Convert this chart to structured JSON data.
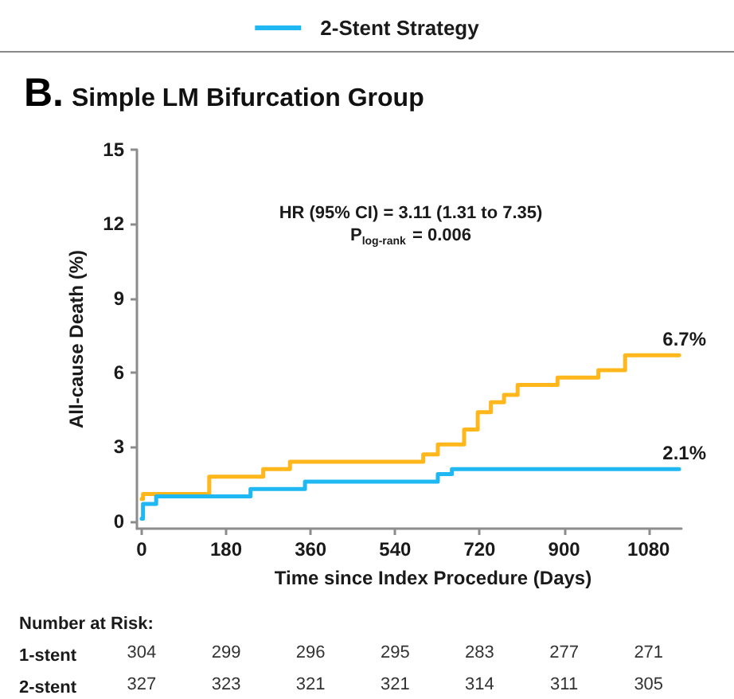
{
  "chart_data": {
    "type": "step",
    "title": "B. Simple LM Bifurcation Group",
    "xlabel": "Time since Index Procedure (Days)",
    "ylabel": "All-cause Death (%)",
    "xlim": [
      -10,
      1150
    ],
    "xticks": [
      0,
      180,
      360,
      540,
      720,
      900,
      1080
    ],
    "ylim": [
      -0.3,
      15
    ],
    "yticks": [
      0,
      3,
      6,
      9,
      12,
      15
    ],
    "series": [
      {
        "color": "#ffb71b",
        "x": [
          0,
          3,
          144,
          259,
          316,
          600,
          631,
          687,
          716,
          744,
          772,
          801,
          886,
          973,
          1030,
          1145
        ],
        "values": [
          0.9,
          1.1,
          1.8,
          2.1,
          2.4,
          2.7,
          3.1,
          3.7,
          4.4,
          4.8,
          5.1,
          5.5,
          5.8,
          6.1,
          6.7,
          6.7
        ]
      },
      {
        "name": "2-Stent Strategy",
        "color": "#1fb8f2",
        "x": [
          0,
          3,
          31,
          232,
          348,
          631,
          661,
          1145
        ],
        "values": [
          0.1,
          0.7,
          1.0,
          1.3,
          1.6,
          1.9,
          2.1,
          2.1
        ]
      }
    ],
    "legend": "top",
    "grid": false,
    "marker": "none",
    "line_style": "solid",
    "annotations": [
      "HR (95% CI) = 3.11 (1.31 to 7.35)",
      "P$_{log-rank}$ = 0.006",
      {
        "text": "6.7%",
        "x": 1145,
        "y": 6.7
      },
      {
        "text": "2.1%",
        "x": 1145,
        "y": 2.1
      },
      "Number at Risk:",
      "1-stent 304 299 296 295 283 277 271",
      "2-stent 327 323 321 321 314 311 305"
    ]
  }
}
